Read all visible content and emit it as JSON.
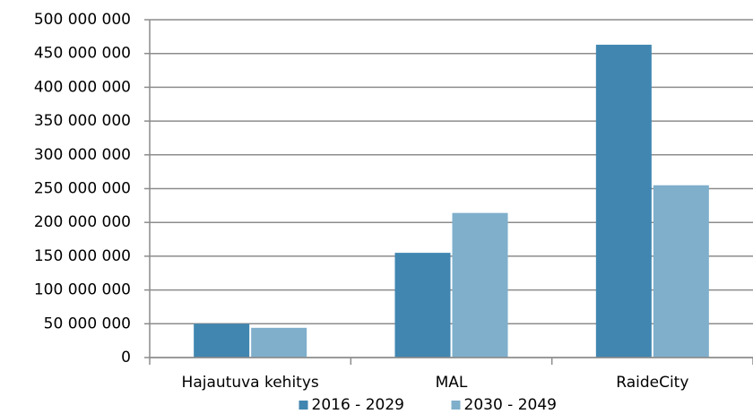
{
  "chart_data": {
    "type": "bar",
    "categories": [
      "Hajautuva kehitys",
      "MAL",
      "RaideCity"
    ],
    "series": [
      {
        "name": "2016 - 2029",
        "color": "#4086b0",
        "values": [
          50000000,
          155000000,
          463000000
        ]
      },
      {
        "name": "2030 - 2049",
        "color": "#7fafcb",
        "values": [
          44000000,
          214000000,
          255000000
        ]
      }
    ],
    "ylim": [
      0,
      500000000
    ],
    "yticks": [
      0,
      {
        "value": 50000000,
        "label": "50 000 000"
      },
      {
        "value": 100000000,
        "label": "100 000 000"
      },
      {
        "value": 150000000,
        "label": "150 000 000"
      },
      {
        "value": 200000000,
        "label": "200 000 000"
      },
      {
        "value": 250000000,
        "label": "250 000 000"
      },
      {
        "value": 300000000,
        "label": "300 000 000"
      },
      {
        "value": 350000000,
        "label": "350 000 000"
      },
      {
        "value": 400000000,
        "label": "400 000 000"
      },
      {
        "value": 450000000,
        "label": "450 000 000"
      },
      {
        "value": 500000000,
        "label": "500 000 000"
      }
    ],
    "grid": true,
    "legend": "bottom"
  }
}
